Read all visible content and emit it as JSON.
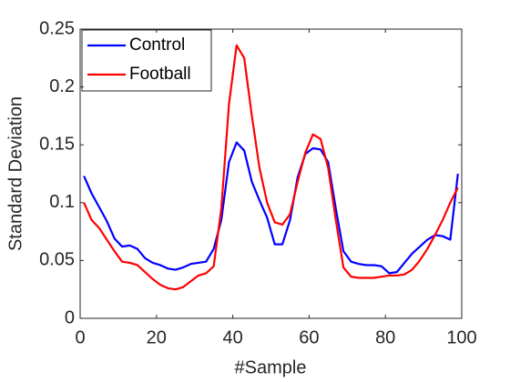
{
  "chart_data": {
    "type": "line",
    "xlabel": "#Sample",
    "ylabel": "Standard Deviation",
    "x": [
      1,
      3,
      5,
      7,
      9,
      11,
      13,
      15,
      17,
      19,
      21,
      23,
      25,
      27,
      29,
      31,
      33,
      35,
      37,
      39,
      41,
      43,
      45,
      47,
      49,
      51,
      53,
      55,
      57,
      59,
      61,
      63,
      65,
      67,
      69,
      71,
      73,
      75,
      77,
      79,
      81,
      83,
      85,
      87,
      89,
      91,
      93,
      95,
      97,
      99
    ],
    "series": [
      {
        "name": "Control",
        "color": "#0000ff",
        "values": [
          0.123,
          0.108,
          0.096,
          0.084,
          0.069,
          0.062,
          0.063,
          0.06,
          0.052,
          0.048,
          0.046,
          0.043,
          0.042,
          0.044,
          0.047,
          0.048,
          0.049,
          0.06,
          0.085,
          0.135,
          0.152,
          0.145,
          0.118,
          0.102,
          0.087,
          0.064,
          0.064,
          0.085,
          0.122,
          0.142,
          0.147,
          0.146,
          0.135,
          0.095,
          0.058,
          0.049,
          0.047,
          0.046,
          0.046,
          0.045,
          0.039,
          0.04,
          0.048,
          0.056,
          0.062,
          0.068,
          0.072,
          0.071,
          0.068,
          0.125
        ]
      },
      {
        "name": "Football",
        "color": "#ff0000",
        "values": [
          0.1,
          0.085,
          0.078,
          0.068,
          0.058,
          0.049,
          0.048,
          0.046,
          0.04,
          0.034,
          0.029,
          0.026,
          0.025,
          0.027,
          0.032,
          0.037,
          0.039,
          0.045,
          0.095,
          0.185,
          0.236,
          0.225,
          0.175,
          0.13,
          0.1,
          0.083,
          0.081,
          0.09,
          0.118,
          0.143,
          0.159,
          0.155,
          0.13,
          0.085,
          0.044,
          0.036,
          0.035,
          0.035,
          0.035,
          0.036,
          0.037,
          0.037,
          0.038,
          0.042,
          0.05,
          0.06,
          0.072,
          0.085,
          0.1,
          0.113
        ]
      }
    ],
    "xlim": [
      0,
      100
    ],
    "xticks": [
      0,
      20,
      40,
      60,
      80,
      100
    ],
    "ylim": [
      0,
      0.25
    ],
    "yticks": [
      0,
      0.05,
      0.1,
      0.15,
      0.2,
      0.25
    ],
    "grid": false,
    "legend": "top-left"
  }
}
